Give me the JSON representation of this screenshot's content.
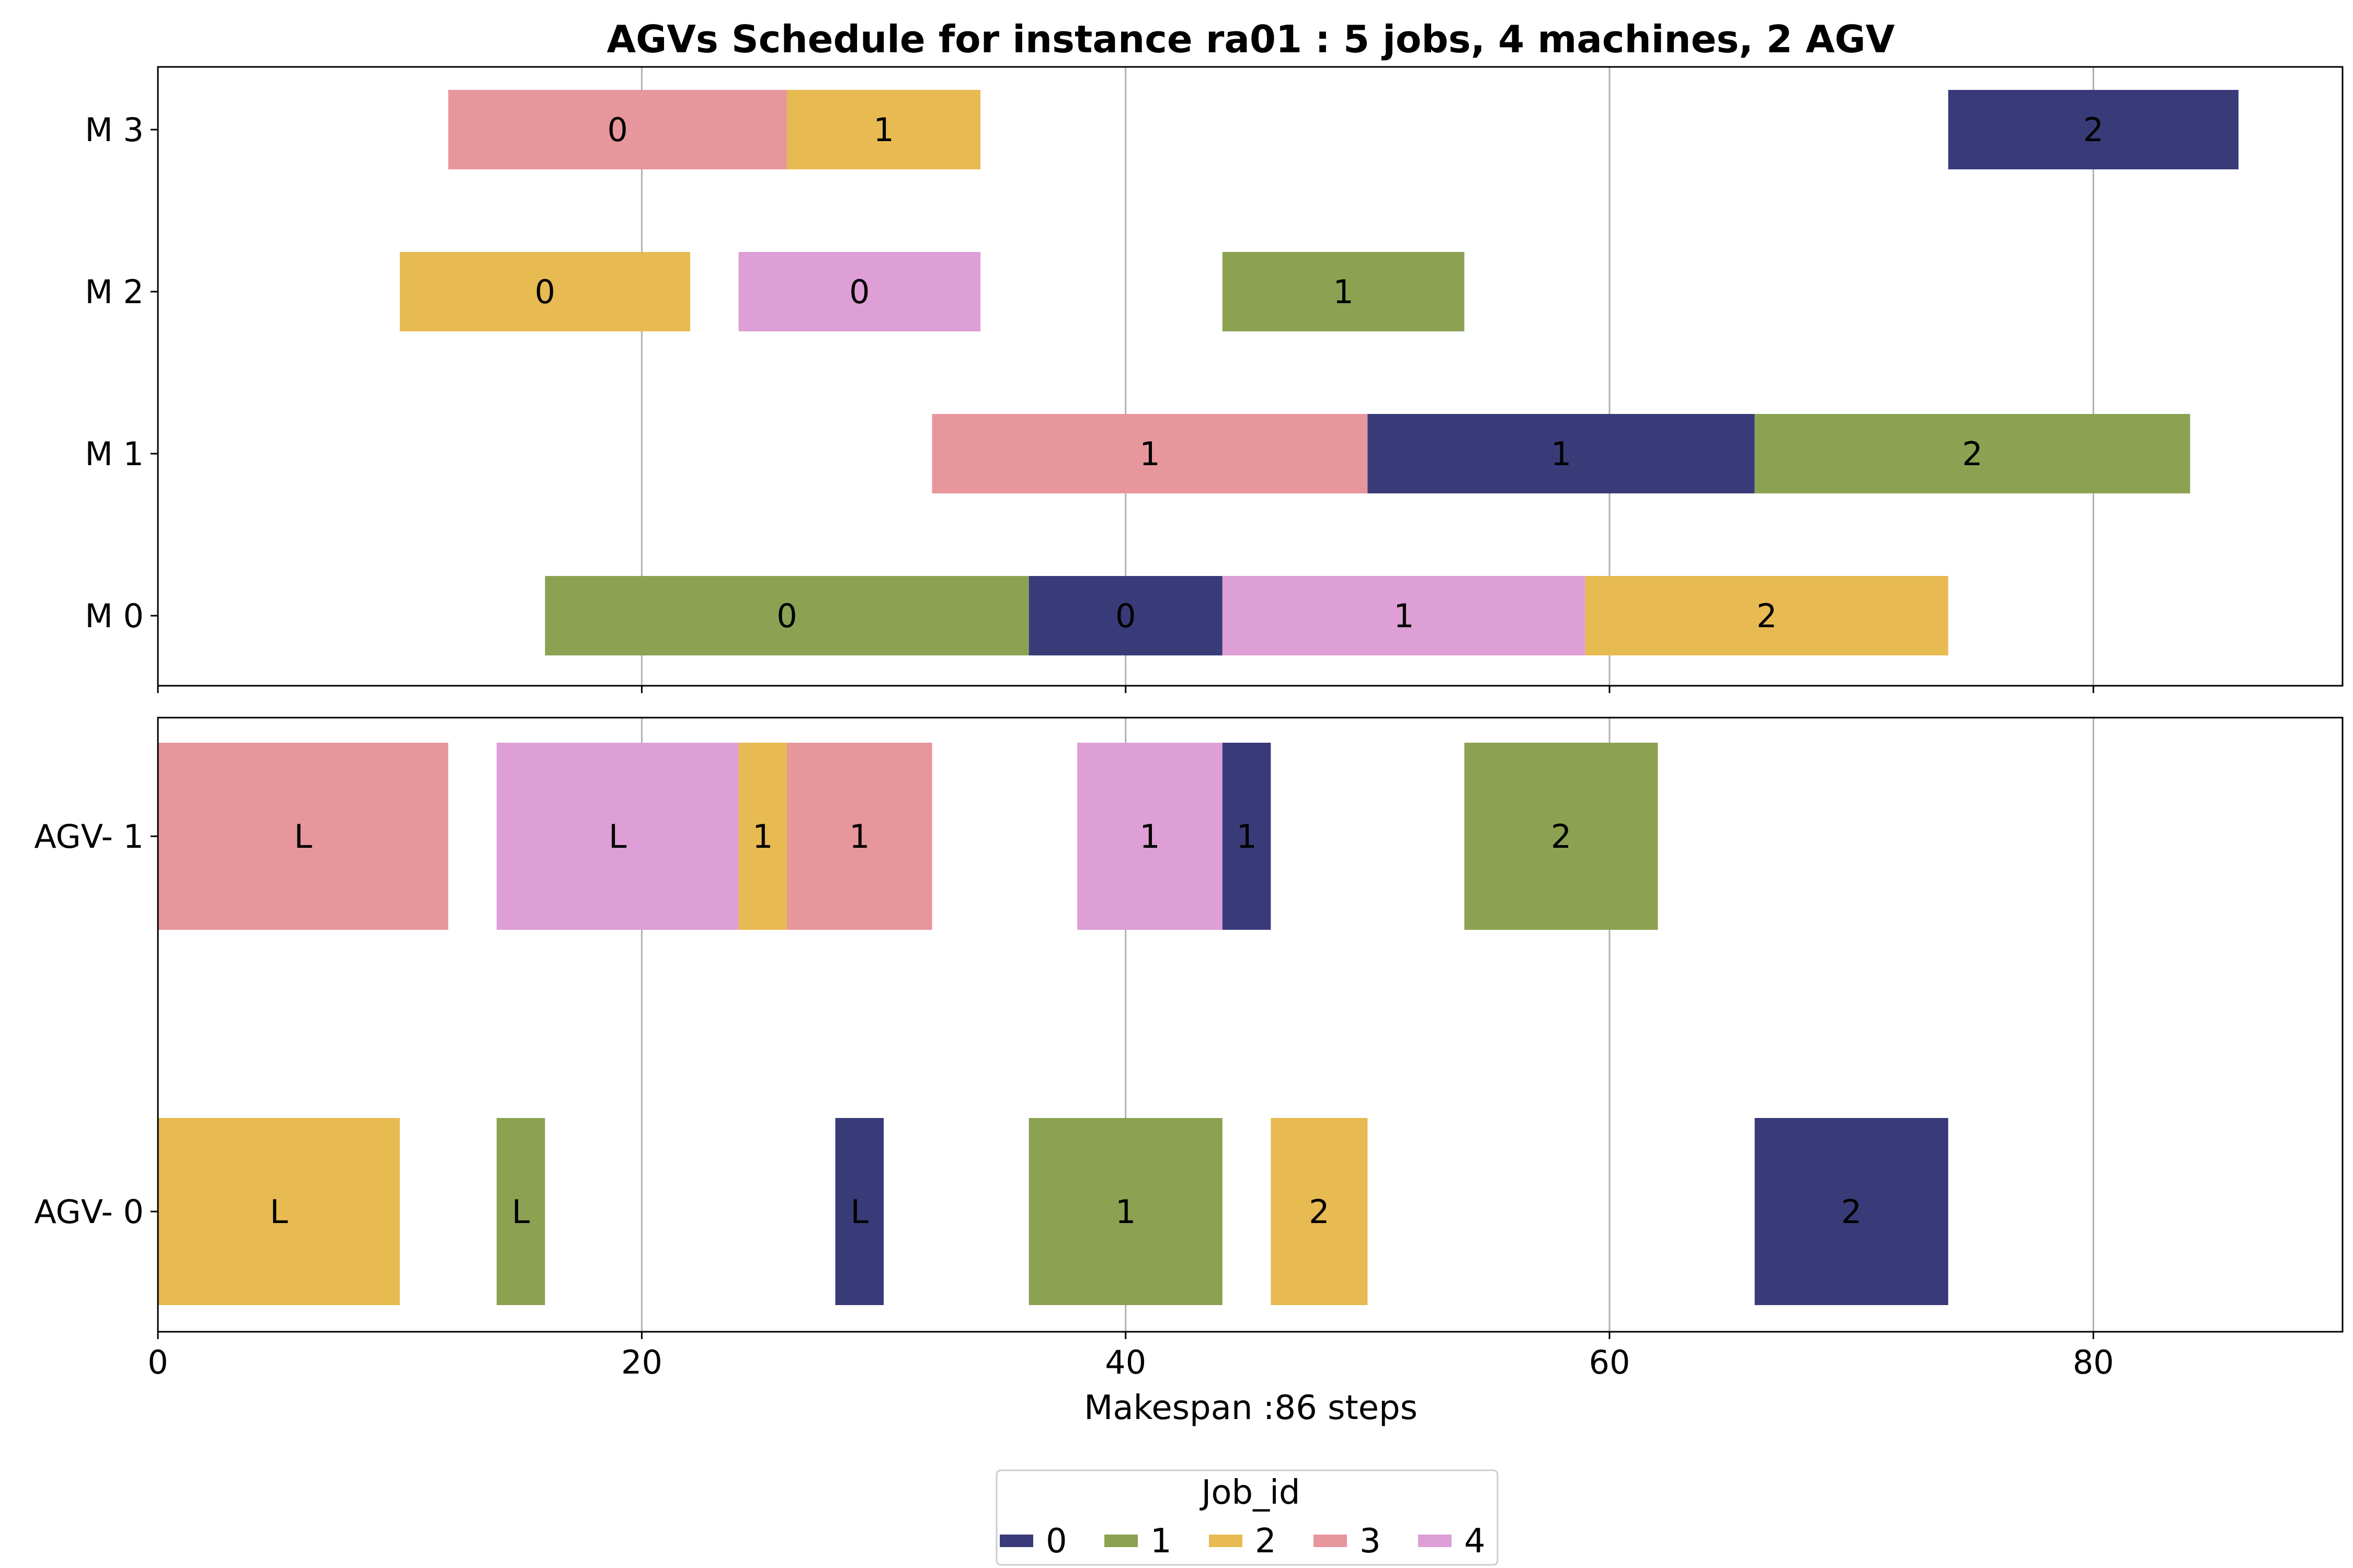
{
  "chart_data": {
    "type": "gantt",
    "title": "AGVs Schedule for instance ra01  : 5 jobs, 4 machines, 2 AGV",
    "xlabel": "Makespan :86 steps",
    "xlim": [
      0,
      90.3
    ],
    "xticks": [
      0,
      20,
      40,
      60,
      80
    ],
    "grid": "vertical",
    "legend": {
      "title": "Job_id",
      "placement": "bottom-center",
      "entries": [
        {
          "job": 0,
          "label": "0",
          "color": "#393b79"
        },
        {
          "job": 1,
          "label": "1",
          "color": "#8ca252"
        },
        {
          "job": 2,
          "label": "2",
          "color": "#e7ba52"
        },
        {
          "job": 3,
          "label": "3",
          "color": "#e7969c"
        },
        {
          "job": 4,
          "label": "4",
          "color": "#de9ed6"
        }
      ]
    },
    "machines": {
      "rows": [
        "M 0",
        "M 1",
        "M 2",
        "M 3"
      ],
      "tasks": [
        {
          "row": 0,
          "job": 1,
          "start": 16,
          "end": 36,
          "label": "0"
        },
        {
          "row": 0,
          "job": 0,
          "start": 36,
          "end": 44,
          "label": "0"
        },
        {
          "row": 0,
          "job": 4,
          "start": 44,
          "end": 59,
          "label": "1"
        },
        {
          "row": 0,
          "job": 2,
          "start": 59,
          "end": 74,
          "label": "2"
        },
        {
          "row": 1,
          "job": 3,
          "start": 32,
          "end": 50,
          "label": "1"
        },
        {
          "row": 1,
          "job": 0,
          "start": 50,
          "end": 66,
          "label": "1"
        },
        {
          "row": 1,
          "job": 1,
          "start": 66,
          "end": 84,
          "label": "2"
        },
        {
          "row": 2,
          "job": 2,
          "start": 10,
          "end": 22,
          "label": "0"
        },
        {
          "row": 2,
          "job": 4,
          "start": 24,
          "end": 34,
          "label": "0"
        },
        {
          "row": 2,
          "job": 1,
          "start": 44,
          "end": 54,
          "label": "1"
        },
        {
          "row": 3,
          "job": 3,
          "start": 12,
          "end": 26,
          "label": "0"
        },
        {
          "row": 3,
          "job": 2,
          "start": 26,
          "end": 34,
          "label": "1"
        },
        {
          "row": 3,
          "job": 0,
          "start": 74,
          "end": 86,
          "label": "2"
        }
      ]
    },
    "agvs": {
      "rows": [
        "AGV- 0",
        "AGV- 1"
      ],
      "tasks": [
        {
          "row": 0,
          "job": 2,
          "start": 0,
          "end": 10,
          "label": "L"
        },
        {
          "row": 0,
          "job": 1,
          "start": 14,
          "end": 16,
          "label": "L"
        },
        {
          "row": 0,
          "job": 0,
          "start": 28,
          "end": 30,
          "label": "L"
        },
        {
          "row": 0,
          "job": 1,
          "start": 36,
          "end": 44,
          "label": "1"
        },
        {
          "row": 0,
          "job": 2,
          "start": 46,
          "end": 50,
          "label": "2"
        },
        {
          "row": 0,
          "job": 0,
          "start": 66,
          "end": 74,
          "label": "2"
        },
        {
          "row": 1,
          "job": 3,
          "start": 0,
          "end": 12,
          "label": "L"
        },
        {
          "row": 1,
          "job": 4,
          "start": 14,
          "end": 24,
          "label": "L"
        },
        {
          "row": 1,
          "job": 2,
          "start": 24,
          "end": 26,
          "label": "1"
        },
        {
          "row": 1,
          "job": 3,
          "start": 26,
          "end": 32,
          "label": "1"
        },
        {
          "row": 1,
          "job": 4,
          "start": 38,
          "end": 44,
          "label": "1"
        },
        {
          "row": 1,
          "job": 0,
          "start": 44,
          "end": 46,
          "label": "1"
        },
        {
          "row": 1,
          "job": 1,
          "start": 54,
          "end": 62,
          "label": "2"
        }
      ]
    }
  }
}
